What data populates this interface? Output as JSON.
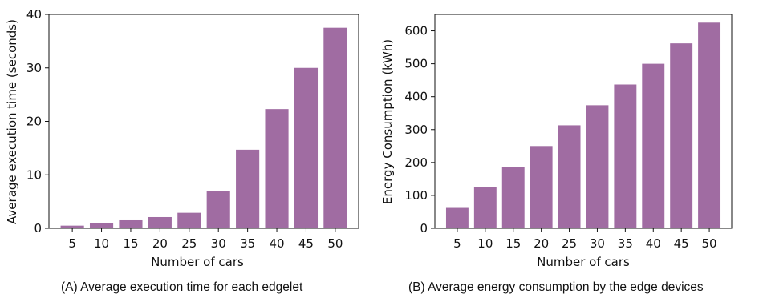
{
  "bar_color": "#a06ca2",
  "chart_data": [
    {
      "type": "bar",
      "xlabel": "Number of cars",
      "ylabel": "Average execution time (seconds)",
      "categories": [
        "5",
        "10",
        "15",
        "20",
        "25",
        "30",
        "35",
        "40",
        "45",
        "50"
      ],
      "values": [
        0.5,
        1.0,
        1.5,
        2.1,
        2.9,
        7.0,
        14.7,
        22.3,
        30.0,
        37.5
      ],
      "ylim": [
        0,
        40
      ],
      "yticks": [
        0,
        10,
        20,
        30,
        40
      ],
      "caption": "(A) Average execution time for each edgelet",
      "grid": false
    },
    {
      "type": "bar",
      "xlabel": "Number of cars",
      "ylabel": "Energy Consumption (kWh)",
      "categories": [
        "5",
        "10",
        "15",
        "20",
        "25",
        "30",
        "35",
        "40",
        "45",
        "50"
      ],
      "values": [
        62,
        125,
        187,
        250,
        313,
        374,
        437,
        500,
        562,
        625
      ],
      "ylim": [
        0,
        650
      ],
      "yticks": [
        0,
        100,
        200,
        300,
        400,
        500,
        600
      ],
      "caption": "(B) Average energy consumption by the edge devices",
      "grid": false
    }
  ]
}
